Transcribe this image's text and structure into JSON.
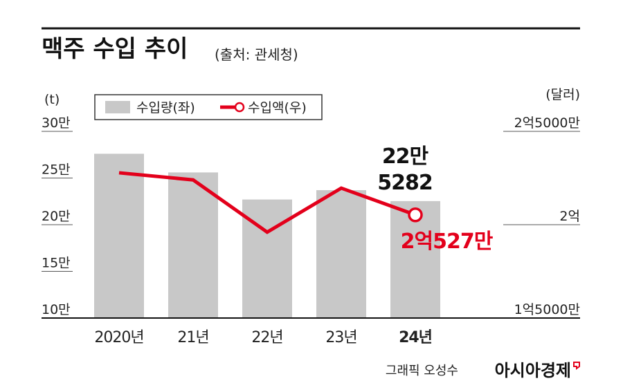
{
  "chart_data": {
    "type": "bar_line",
    "title": "맥주 수입 추이",
    "subtitle": "(출처: 관세청)",
    "y_label": "(t)",
    "y2_label": "(달러)",
    "categories": [
      "2020년",
      "21년",
      "22년",
      "23년",
      "24년"
    ],
    "series": [
      {
        "name": "수입량(좌)",
        "type": "bar",
        "color": "#c8c8c8",
        "values": [
          276000,
          256000,
          227000,
          237000,
          225282
        ],
        "value_labels": [
          null,
          null,
          null,
          null,
          "22만\n5282"
        ]
      },
      {
        "name": "수입액(우)",
        "type": "line",
        "axis": "y2",
        "color": "#e3001b",
        "values": [
          227800000,
          224000000,
          196000000,
          219600000,
          205270000
        ],
        "value_labels": [
          null,
          null,
          null,
          null,
          "2억527만"
        ]
      }
    ],
    "ylim": [
      100000,
      300000
    ],
    "yticks": [
      {
        "value": 100000,
        "label": "10만"
      },
      {
        "value": 150000,
        "label": "15만"
      },
      {
        "value": 200000,
        "label": "20만"
      },
      {
        "value": 250000,
        "label": "25만"
      },
      {
        "value": 300000,
        "label": "30만"
      }
    ],
    "y2lim": [
      150000000,
      250000000
    ],
    "y2ticks": [
      {
        "value": 150000000,
        "label": "1억5000만"
      },
      {
        "value": 200000000,
        "label": "2억"
      },
      {
        "value": 250000000,
        "label": "2억5000만"
      }
    ],
    "credit": "그래픽 오성수",
    "brand": "아시아경제"
  }
}
